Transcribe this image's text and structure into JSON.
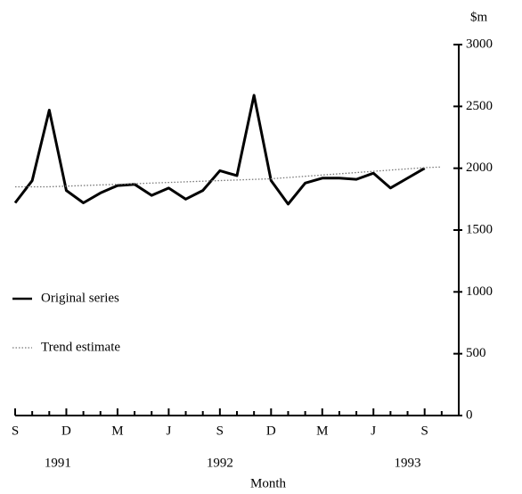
{
  "chart_data": {
    "type": "line",
    "unit_label": "$m",
    "x_label": "Month",
    "categories": [
      "S",
      null,
      null,
      "D",
      null,
      null,
      "M",
      null,
      null,
      "J",
      null,
      null,
      "S",
      null,
      null,
      "D",
      null,
      null,
      "M",
      null,
      null,
      "J",
      null,
      null,
      "S",
      null,
      null
    ],
    "years": [
      "1991",
      "1992",
      "1993"
    ],
    "series": [
      {
        "name": "Original series",
        "color": "#000000",
        "style": "solid",
        "values": [
          1720,
          1900,
          2470,
          1820,
          1720,
          1800,
          1860,
          1870,
          1780,
          1840,
          1750,
          1820,
          1980,
          1940,
          2590,
          1900,
          1710,
          1880,
          1920,
          1920,
          1910,
          1960,
          1840,
          1920,
          2000,
          null,
          null
        ]
      },
      {
        "name": "Trend estimate",
        "color": "#777777",
        "style": "dotted",
        "values": [
          1850,
          1850,
          1850,
          1855,
          1860,
          1865,
          1870,
          1875,
          1880,
          1885,
          1890,
          1895,
          1900,
          1905,
          1910,
          1915,
          1925,
          1935,
          1945,
          1955,
          1965,
          1975,
          1985,
          1995,
          2005,
          2010,
          null
        ]
      }
    ],
    "ylim": [
      0,
      3000
    ],
    "yticks": [
      0,
      500,
      1000,
      1500,
      2000,
      2500,
      3000
    ]
  }
}
